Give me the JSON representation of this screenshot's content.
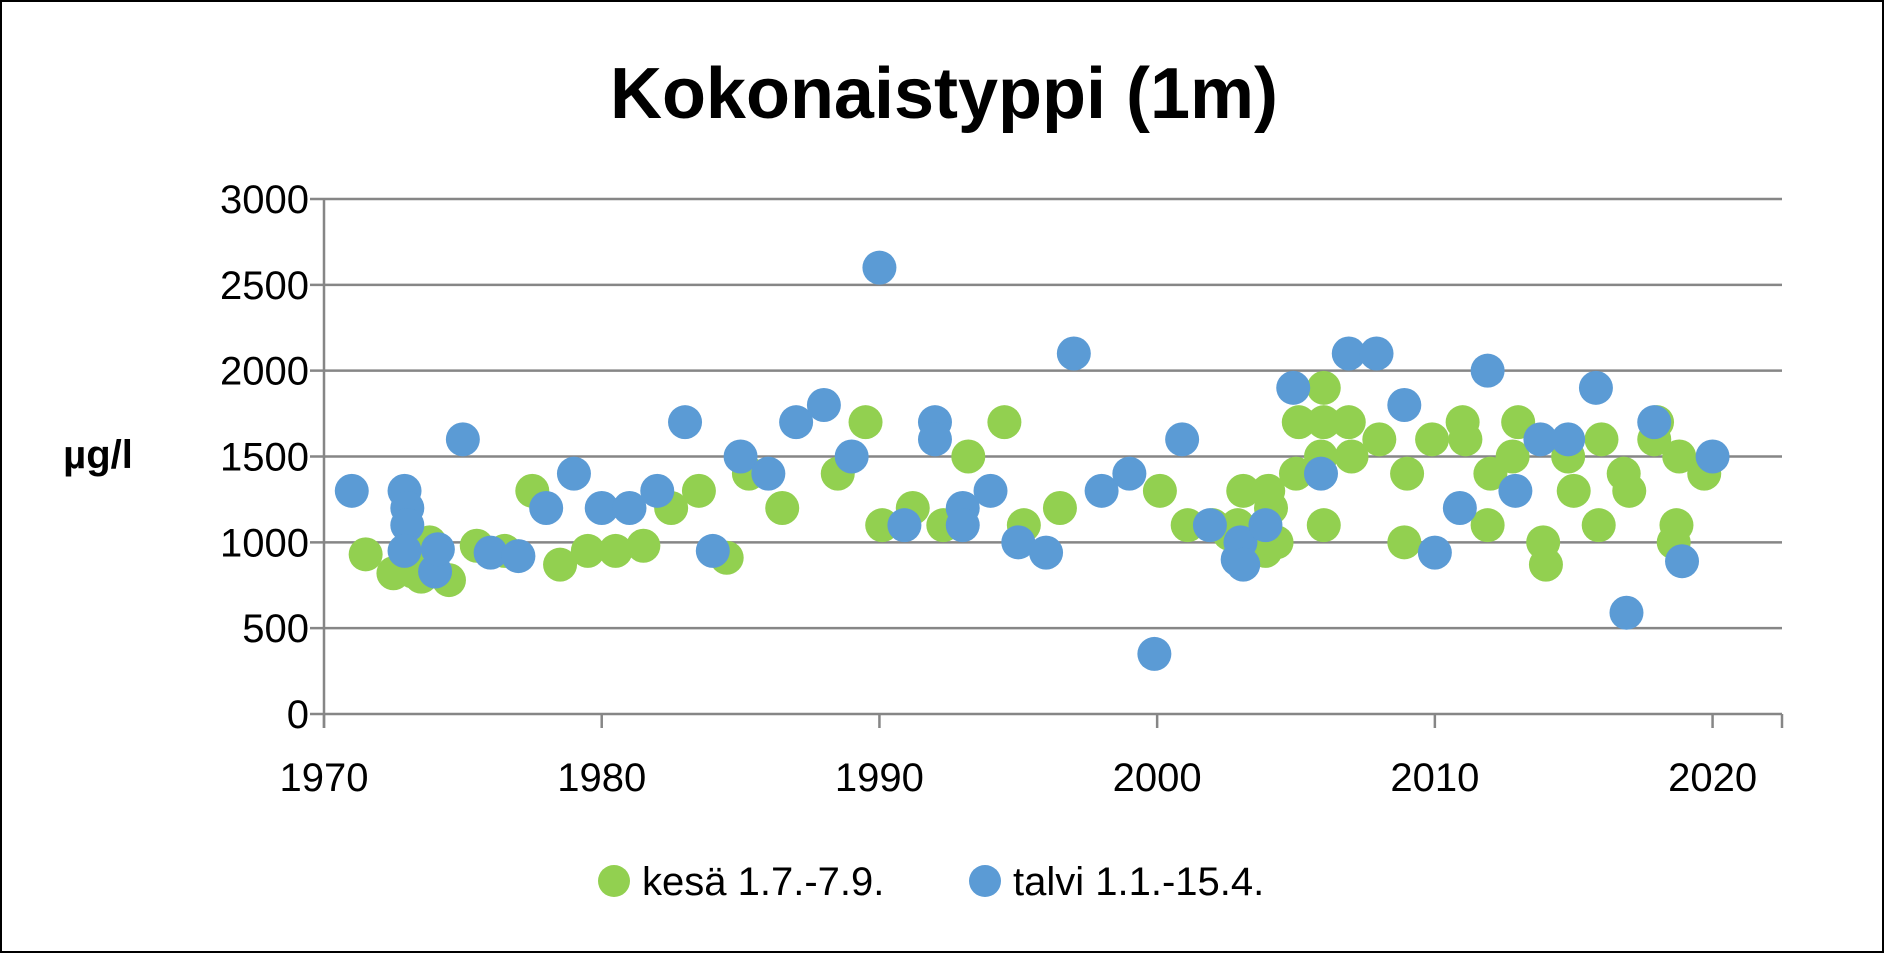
{
  "chart_data": {
    "type": "scatter",
    "title": "Kokonaistyppi (1m)",
    "ylabel": "µg/l",
    "xlabel": "",
    "xlim": [
      1970,
      2022.5
    ],
    "ylim": [
      0,
      3000
    ],
    "xticks": [
      1970,
      1980,
      1990,
      2000,
      2010,
      2020
    ],
    "yticks": [
      0,
      500,
      1000,
      1500,
      2000,
      2500,
      3000
    ],
    "grid": "horizontal",
    "legend": "bottom",
    "series": [
      {
        "name": "kesä 1.7.-7.9.",
        "color": "#92d050",
        "points": [
          [
            1971.5,
            930
          ],
          [
            1972.5,
            820
          ],
          [
            1973.2,
            830
          ],
          [
            1973.5,
            800
          ],
          [
            1973.8,
            1000
          ],
          [
            1974.5,
            780
          ],
          [
            1975.5,
            980
          ],
          [
            1976.5,
            950
          ],
          [
            1977.5,
            1300
          ],
          [
            1978.5,
            870
          ],
          [
            1979.5,
            950
          ],
          [
            1980.5,
            950
          ],
          [
            1981.5,
            980
          ],
          [
            1982.5,
            1200
          ],
          [
            1983.5,
            1300
          ],
          [
            1984.5,
            910
          ],
          [
            1985.3,
            1400
          ],
          [
            1986.5,
            1200
          ],
          [
            1988.5,
            1400
          ],
          [
            1989.5,
            1700
          ],
          [
            1990.1,
            1100
          ],
          [
            1991.2,
            1200
          ],
          [
            1992.3,
            1100
          ],
          [
            1993.2,
            1500
          ],
          [
            1994.5,
            1700
          ],
          [
            1995.2,
            1100
          ],
          [
            1996.5,
            1200
          ],
          [
            2000.1,
            1300
          ],
          [
            2001.1,
            1100
          ],
          [
            2002.0,
            1100
          ],
          [
            2002.6,
            1050
          ],
          [
            2002.9,
            1100
          ],
          [
            2003.1,
            1300
          ],
          [
            2003.4,
            1000
          ],
          [
            2003.9,
            950
          ],
          [
            2004.0,
            1300
          ],
          [
            2004.1,
            1200
          ],
          [
            2004.3,
            1000
          ],
          [
            2005.0,
            1400
          ],
          [
            2005.1,
            1700
          ],
          [
            2005.9,
            1500
          ],
          [
            2006.0,
            1700
          ],
          [
            2006.0,
            1900
          ],
          [
            2006.0,
            1100
          ],
          [
            2006.9,
            1700
          ],
          [
            2007.0,
            1500
          ],
          [
            2008.0,
            1600
          ],
          [
            2008.9,
            1000
          ],
          [
            2009.0,
            1400
          ],
          [
            2009.9,
            1600
          ],
          [
            2011.0,
            1700
          ],
          [
            2011.1,
            1600
          ],
          [
            2011.9,
            1100
          ],
          [
            2012.0,
            1400
          ],
          [
            2012.8,
            1500
          ],
          [
            2013.0,
            1700
          ],
          [
            2013.9,
            1000
          ],
          [
            2014.0,
            870
          ],
          [
            2014.8,
            1500
          ],
          [
            2015.0,
            1300
          ],
          [
            2015.9,
            1100
          ],
          [
            2016.0,
            1600
          ],
          [
            2016.8,
            1400
          ],
          [
            2017.0,
            1300
          ],
          [
            2017.9,
            1600
          ],
          [
            2018.0,
            1700
          ],
          [
            2018.6,
            1000
          ],
          [
            2018.7,
            1100
          ],
          [
            2018.8,
            1500
          ],
          [
            2019.7,
            1400
          ]
        ]
      },
      {
        "name": "talvi 1.1.-15.4.",
        "color": "#5b9bd5",
        "points": [
          [
            1971.0,
            1300
          ],
          [
            1972.9,
            1300
          ],
          [
            1973.0,
            1200
          ],
          [
            1973.0,
            1100
          ],
          [
            1972.9,
            950
          ],
          [
            1974.0,
            830
          ],
          [
            1974.1,
            960
          ],
          [
            1975.0,
            1600
          ],
          [
            1976.0,
            940
          ],
          [
            1977.0,
            920
          ],
          [
            1978.0,
            1200
          ],
          [
            1979.0,
            1400
          ],
          [
            1980.0,
            1200
          ],
          [
            1981.0,
            1200
          ],
          [
            1982.0,
            1300
          ],
          [
            1983.0,
            1700
          ],
          [
            1984.0,
            950
          ],
          [
            1985.0,
            1500
          ],
          [
            1986.0,
            1400
          ],
          [
            1987.0,
            1700
          ],
          [
            1988.0,
            1800
          ],
          [
            1989.0,
            1500
          ],
          [
            1990.0,
            2600
          ],
          [
            1990.9,
            1100
          ],
          [
            1992.0,
            1700
          ],
          [
            1992.0,
            1600
          ],
          [
            1993.0,
            1200
          ],
          [
            1993.0,
            1100
          ],
          [
            1994.0,
            1300
          ],
          [
            1995.0,
            1000
          ],
          [
            1996.0,
            940
          ],
          [
            1997.0,
            2100
          ],
          [
            1998.0,
            1300
          ],
          [
            1999.0,
            1400
          ],
          [
            1999.9,
            350
          ],
          [
            2000.9,
            1600
          ],
          [
            2001.9,
            1100
          ],
          [
            2002.9,
            900
          ],
          [
            2003.0,
            1000
          ],
          [
            2003.1,
            870
          ],
          [
            2003.9,
            1100
          ],
          [
            2004.9,
            1900
          ],
          [
            2005.9,
            1400
          ],
          [
            2006.9,
            2100
          ],
          [
            2007.9,
            2100
          ],
          [
            2008.9,
            1800
          ],
          [
            2010.0,
            940
          ],
          [
            2010.9,
            1200
          ],
          [
            2011.9,
            2000
          ],
          [
            2012.9,
            1300
          ],
          [
            2013.8,
            1600
          ],
          [
            2014.8,
            1600
          ],
          [
            2015.8,
            1900
          ],
          [
            2016.9,
            590
          ],
          [
            2017.9,
            1700
          ],
          [
            2018.9,
            890
          ],
          [
            2020.0,
            1500
          ]
        ]
      }
    ]
  }
}
